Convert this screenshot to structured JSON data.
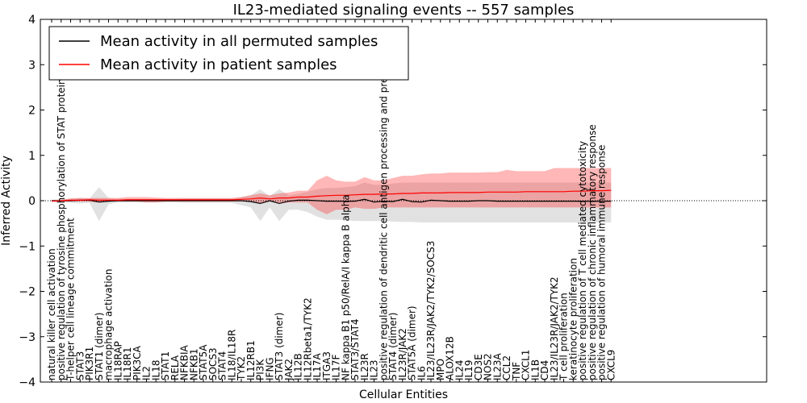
{
  "chart_data": {
    "type": "line",
    "title": "IL23-mediated signaling events -- 557 samples",
    "xlabel": "Cellular Entities",
    "ylabel": "Inferred Activity",
    "ylim": [
      -4,
      4
    ],
    "yticks": [
      "4",
      "3",
      "2",
      "1",
      "0",
      "−1",
      "−2",
      "−3",
      "−4"
    ],
    "ytick_values": [
      4,
      3,
      2,
      1,
      0,
      -1,
      -2,
      -3,
      -4
    ],
    "legend_position": "top-left",
    "categories": [
      "natural killer cell activation",
      "positive regulation of tyrosine phosphorylation of STAT protein",
      "T-helper cell lineage commitment",
      "STAT3",
      "PIK3R1",
      "STAT1 (dimer)",
      "macrophage activation",
      "IL18RAP",
      "IL18R1",
      "PIK3CA",
      "IL2",
      "IL18",
      "STAT1",
      "RELA",
      "NFKBIA",
      "NFKB1",
      "STAT5A",
      "SOCS3",
      "STAT4",
      "IL18/IL18R",
      "TYK2",
      "IL12RB1",
      "PI3K",
      "IFNG",
      "STAT3 (dimer)",
      "JAK2",
      "IL12B",
      "IL12Rbeta1/TYK2",
      "IL17A",
      "ITGA3",
      "IL17F",
      "NF kappa B1 p50/RelA/I kappa B alpha",
      "STAT3/STAT4",
      "IL23R",
      "IL23",
      "positive regulation of dendritic cell antigen processing and presentation",
      "STAT4 (dimer)",
      "IL23R/JAK2",
      "STAT5A (dimer)",
      "IL6",
      "IL23/IL23R/JAK2/TYK2/SOCS3",
      "MPO",
      "ALOX12B",
      "IL24",
      "IL19",
      "CD3E",
      "NOS2",
      "IL23A",
      "CCL2",
      "TNF",
      "CXCL1",
      "IL1B",
      "CD4",
      "IL23/IL23R/JAK2/TYK2",
      "T cell proliferation",
      "keratinocyte proliferation",
      "positive regulation of T cell mediated cytotoxicity",
      "positive regulation of chronic inflammatory response",
      "positive regulation of humoral immune response",
      "CXCL9"
    ],
    "series": [
      {
        "name": "Mean activity in all permuted samples",
        "color": "#000000",
        "values": [
          0,
          0,
          0,
          0.01,
          0.01,
          -0.03,
          -0.01,
          0,
          0,
          0,
          0,
          0,
          0,
          0,
          0,
          0,
          0,
          0,
          0,
          0,
          0,
          -0.02,
          -0.06,
          0,
          -0.06,
          -0.01,
          0.01,
          0.01,
          0,
          -0.01,
          -0.01,
          -0.01,
          -0.01,
          0.03,
          -0.03,
          -0.01,
          -0.02,
          0.03,
          -0.02,
          -0.03,
          0.01,
          0,
          -0.01,
          -0.01,
          -0.01,
          0,
          0,
          -0.01,
          -0.01,
          -0.01,
          -0.01,
          -0.01,
          -0.01,
          -0.01,
          -0.01,
          -0.01,
          -0.01,
          -0.01,
          -0.01,
          -0.01
        ],
        "band_upper": [
          0.02,
          0.03,
          0.05,
          0.06,
          0.05,
          0.3,
          0.06,
          0.04,
          0.04,
          0.04,
          0.04,
          0.04,
          0.04,
          0.04,
          0.05,
          0.05,
          0.05,
          0.05,
          0.05,
          0.05,
          0.08,
          0.12,
          0.25,
          0.1,
          0.25,
          0.12,
          0.15,
          0.2,
          0.25,
          0.28,
          0.28,
          0.3,
          0.32,
          0.4,
          0.35,
          0.35,
          0.38,
          0.4,
          0.4,
          0.4,
          0.4,
          0.4,
          0.4,
          0.4,
          0.4,
          0.4,
          0.4,
          0.4,
          0.4,
          0.4,
          0.4,
          0.4,
          0.4,
          0.4,
          0.4,
          0.4,
          0.4,
          0.4,
          0.4,
          0.4
        ],
        "band_lower": [
          -0.02,
          -0.03,
          -0.05,
          -0.06,
          -0.05,
          -0.45,
          -0.08,
          -0.04,
          -0.04,
          -0.04,
          -0.04,
          -0.04,
          -0.04,
          -0.04,
          -0.05,
          -0.05,
          -0.05,
          -0.05,
          -0.05,
          -0.05,
          -0.1,
          -0.15,
          -0.45,
          -0.15,
          -0.45,
          -0.2,
          -0.2,
          -0.25,
          -0.35,
          -0.42,
          -0.42,
          -0.43,
          -0.45,
          -0.45,
          -0.45,
          -0.45,
          -0.46,
          -0.47,
          -0.47,
          -0.48,
          -0.48,
          -0.48,
          -0.48,
          -0.48,
          -0.48,
          -0.48,
          -0.48,
          -0.48,
          -0.48,
          -0.48,
          -0.48,
          -0.48,
          -0.48,
          -0.48,
          -0.48,
          -0.48,
          -0.48,
          -0.48,
          -0.48,
          -0.48
        ]
      },
      {
        "name": "Mean activity in patient samples",
        "color": "#ff0000",
        "values": [
          -0.01,
          0,
          0.01,
          0.01,
          0.02,
          0.01,
          0.01,
          0.01,
          0.02,
          0.02,
          0.02,
          0.02,
          0.02,
          0.02,
          0.02,
          0.02,
          0.02,
          0.02,
          0.02,
          0.02,
          0.03,
          0.04,
          0.06,
          0.04,
          0.06,
          0.06,
          0.08,
          0.08,
          0.1,
          0.11,
          0.12,
          0.12,
          0.13,
          0.14,
          0.14,
          0.15,
          0.15,
          0.16,
          0.16,
          0.17,
          0.17,
          0.17,
          0.18,
          0.18,
          0.18,
          0.18,
          0.19,
          0.19,
          0.19,
          0.19,
          0.2,
          0.2,
          0.2,
          0.2,
          0.2,
          0.21,
          0.21,
          0.22,
          0.22,
          0.23
        ],
        "band_upper": [
          0,
          0.02,
          0.05,
          0.06,
          0.06,
          0.06,
          0.06,
          0.06,
          0.08,
          0.08,
          0.08,
          0.07,
          0.06,
          0.06,
          0.06,
          0.06,
          0.06,
          0.06,
          0.06,
          0.06,
          0.08,
          0.12,
          0.16,
          0.12,
          0.16,
          0.18,
          0.22,
          0.22,
          0.45,
          0.55,
          0.45,
          0.42,
          0.42,
          0.52,
          0.45,
          0.45,
          0.5,
          0.55,
          0.55,
          0.58,
          0.6,
          0.6,
          0.62,
          0.62,
          0.62,
          0.62,
          0.63,
          0.63,
          0.68,
          0.65,
          0.65,
          0.65,
          0.65,
          0.72,
          0.72,
          0.72,
          0.72,
          0.72,
          0.72,
          0.72
        ],
        "band_lower": [
          -0.02,
          -0.02,
          -0.02,
          -0.02,
          -0.02,
          -0.04,
          -0.02,
          -0.02,
          -0.02,
          -0.02,
          -0.04,
          -0.04,
          -0.02,
          -0.02,
          -0.02,
          -0.02,
          -0.02,
          -0.02,
          -0.02,
          -0.02,
          -0.02,
          -0.02,
          -0.06,
          -0.02,
          -0.06,
          -0.04,
          -0.04,
          -0.04,
          -0.2,
          -0.3,
          -0.2,
          -0.2,
          -0.15,
          -0.18,
          -0.18,
          -0.15,
          -0.15,
          -0.15,
          -0.15,
          -0.15,
          -0.15,
          -0.15,
          -0.15,
          -0.15,
          -0.15,
          -0.15,
          -0.15,
          -0.15,
          -0.15,
          -0.15,
          -0.15,
          -0.15,
          -0.15,
          -0.15,
          -0.15,
          -0.15,
          -0.15,
          -0.15,
          -0.15,
          -0.15
        ]
      }
    ]
  }
}
